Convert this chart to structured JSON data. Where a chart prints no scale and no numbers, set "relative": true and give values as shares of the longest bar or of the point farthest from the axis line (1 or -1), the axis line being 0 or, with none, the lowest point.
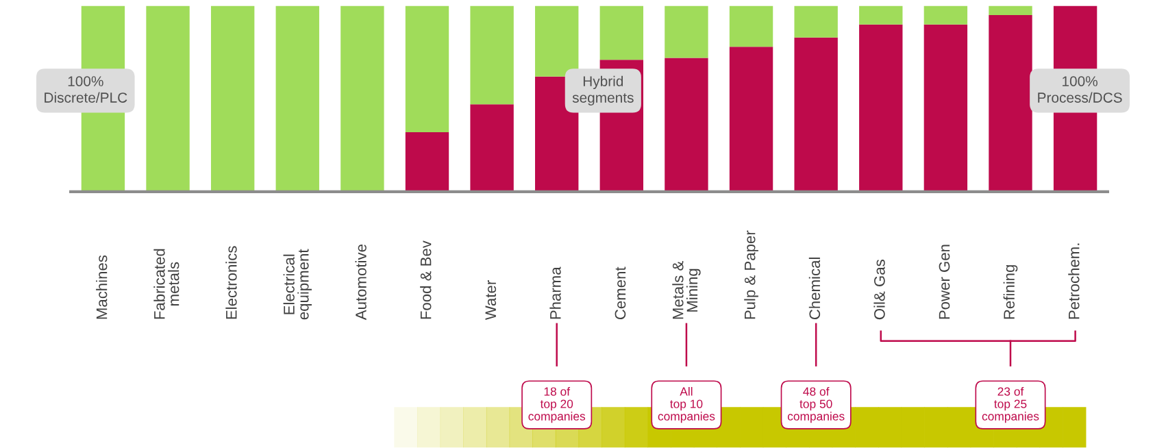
{
  "chart_data": {
    "type": "bar",
    "stacked": true,
    "relative": true,
    "categories": [
      "Machines",
      "Fabricated\nmetals",
      "Electronics",
      "Electrical\nequipment",
      "Automotive",
      "Food & Bev",
      "Water",
      "Pharma",
      "Cement",
      "Metals &\nMining",
      "Pulp & Paper",
      "Chemical",
      "Oil& Gas",
      "Power Gen",
      "Refining",
      "Petrochem."
    ],
    "series": [
      {
        "color": "#be0a4b",
        "values": [
          0,
          0,
          0,
          0,
          0,
          0.32,
          0.47,
          0.62,
          0.71,
          0.72,
          0.78,
          0.83,
          0.9,
          0.9,
          0.95,
          1
        ]
      },
      {
        "color": "#a0dc5a",
        "values": [
          1,
          1,
          1,
          1,
          1,
          0.68,
          0.53,
          0.38,
          0.29,
          0.28,
          0.22,
          0.17,
          0.1,
          0.1,
          0.05,
          0
        ]
      }
    ],
    "annotations": [
      "100%\nDiscrete/PLC",
      "Hybrid\nsegments",
      "100%\nProcess/DCS",
      "18 of\ntop 20\ncompanies",
      "All\ntop 10\ncompanies",
      "48 of\ntop 50\ncompanies",
      "23 of\ntop 25\ncompanies"
    ]
  }
}
